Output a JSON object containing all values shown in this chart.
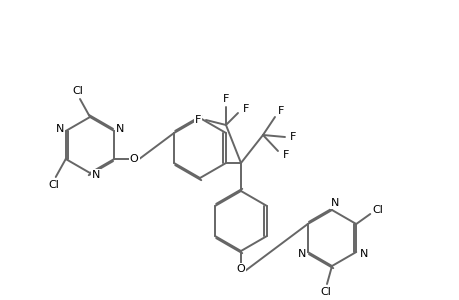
{
  "bg_color": "#ffffff",
  "line_color": "#666666",
  "text_color": "#000000",
  "line_width": 1.4,
  "font_size": 8.0,
  "figsize": [
    4.6,
    3.0
  ],
  "dpi": 100,
  "xlim": [
    0,
    460
  ],
  "ylim": [
    0,
    300
  ]
}
